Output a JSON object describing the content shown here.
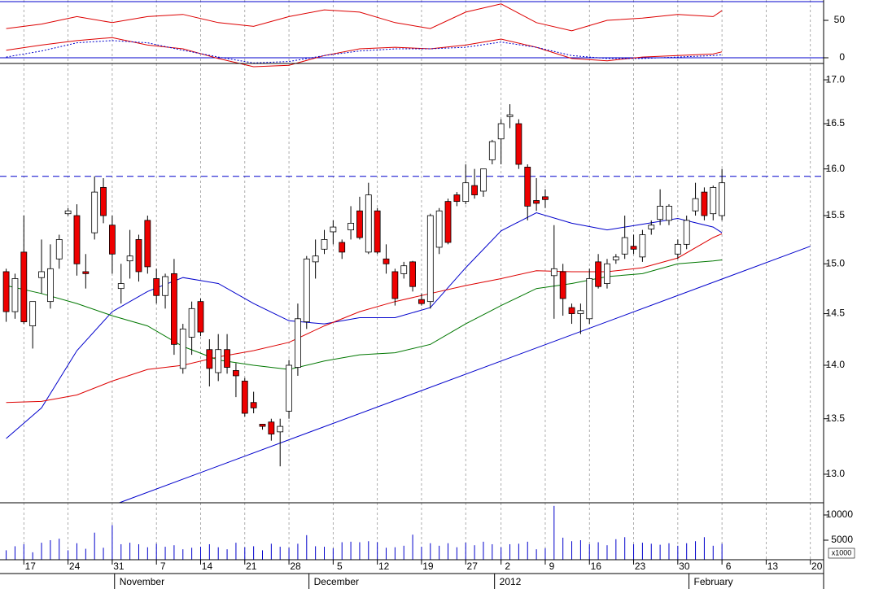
{
  "chart_data": [
    {
      "type": "candlestick",
      "log": true,
      "xlim": [
        -0.7,
        92.5
      ],
      "ylim": [
        12.75,
        17.19
      ],
      "yticks": [
        {
          "value": 17,
          "label": "17.0"
        },
        16.5,
        {
          "value": 16,
          "label": "16.0"
        },
        15.5,
        {
          "value": 15,
          "label": "15.0"
        },
        14.5,
        {
          "value": 14,
          "label": "14.0"
        },
        13.5,
        {
          "value": 13,
          "label": "13.0"
        }
      ],
      "xticks": [
        {
          "value": 2,
          "label": "17"
        },
        {
          "value": 7,
          "label": "24"
        },
        {
          "value": 12,
          "label": "31"
        },
        {
          "value": 17,
          "label": "7"
        },
        {
          "value": 22,
          "label": "14"
        },
        {
          "value": 27,
          "label": "21"
        },
        {
          "value": 32,
          "label": "28"
        },
        {
          "value": 37,
          "label": "5"
        },
        {
          "value": 42,
          "label": "12"
        },
        {
          "value": 47,
          "label": "19"
        },
        {
          "value": 52,
          "label": "27"
        },
        {
          "value": 56,
          "label": "2"
        },
        {
          "value": 61,
          "label": "9"
        },
        {
          "value": 66,
          "label": "16"
        },
        {
          "value": 71,
          "label": "23"
        },
        {
          "value": 76,
          "label": "30"
        },
        {
          "value": 81,
          "label": "6"
        },
        {
          "value": 86,
          "label": "13"
        },
        {
          "value": 91,
          "label": "20"
        }
      ],
      "months": [
        {
          "value": 13,
          "label": "November"
        },
        {
          "value": 35,
          "label": "December"
        },
        {
          "value": 56,
          "label": "2012"
        },
        {
          "value": 78,
          "label": "February"
        }
      ],
      "up_color": "#ffffff",
      "down_color": "#ee0000",
      "open": [
        14.92,
        14.52,
        15.12,
        14.38,
        14.86,
        14.62,
        15.05,
        15.52,
        15.5,
        14.92,
        15.32,
        15.8,
        15.4,
        14.75,
        15.03,
        15.25,
        15.45,
        14.85,
        14.68,
        14.9,
        13.97,
        14.27,
        14.62,
        14.15,
        13.93,
        14.15,
        13.95,
        13.85,
        13.65,
        13.45,
        13.47,
        13.38,
        13.57,
        13.98,
        14.42,
        15.02,
        15.15,
        15.33,
        15.22,
        15.35,
        15.55,
        15.12,
        15.55,
        15.05,
        14.92,
        14.9,
        15.02,
        14.64,
        14.62,
        15.17,
        15.65,
        15.72,
        15.65,
        15.82,
        15.76,
        16.1,
        16.33,
        16.58,
        16.5,
        16.02,
        15.66,
        15.7,
        14.88,
        14.92,
        14.56,
        14.5,
        14.45,
        15.02,
        14.8,
        15.04,
        15.1,
        15.18,
        15.07,
        15.36,
        15.46,
        15.45,
        15.1,
        15.2,
        15.55,
        15.75,
        15.52,
        15.5
      ],
      "high": [
        14.95,
        14.9,
        15.5,
        14.62,
        15.25,
        15.2,
        15.3,
        15.58,
        15.62,
        15.1,
        15.92,
        15.9,
        15.5,
        15.0,
        15.35,
        15.3,
        15.5,
        14.95,
        14.9,
        15.05,
        14.4,
        14.62,
        14.65,
        14.25,
        14.3,
        14.3,
        14.02,
        13.88,
        13.75,
        13.45,
        13.5,
        13.5,
        14.05,
        14.6,
        15.08,
        15.25,
        15.35,
        15.45,
        15.25,
        15.6,
        15.7,
        15.85,
        15.58,
        15.2,
        14.95,
        15.02,
        15.03,
        14.7,
        15.52,
        15.58,
        15.68,
        15.75,
        16.05,
        16.0,
        16.0,
        16.32,
        16.55,
        16.72,
        16.55,
        16.05,
        15.9,
        15.78,
        15.4,
        15.0,
        14.6,
        14.6,
        14.95,
        15.1,
        15.05,
        15.1,
        15.5,
        15.3,
        15.35,
        15.45,
        15.78,
        15.62,
        15.25,
        15.5,
        15.85,
        15.8,
        15.82,
        16.0
      ],
      "low": [
        14.42,
        14.45,
        14.4,
        14.16,
        14.7,
        14.55,
        14.95,
        15.5,
        14.88,
        14.75,
        15.25,
        15.42,
        14.9,
        14.6,
        14.85,
        14.82,
        14.9,
        14.6,
        14.55,
        14.1,
        13.92,
        14.1,
        14.28,
        13.8,
        13.85,
        13.92,
        13.7,
        13.52,
        13.55,
        13.4,
        13.3,
        13.07,
        13.5,
        13.9,
        14.35,
        14.85,
        15.1,
        15.2,
        15.05,
        15.25,
        15.25,
        15.1,
        15.1,
        14.9,
        14.58,
        14.85,
        14.72,
        14.58,
        14.55,
        15.1,
        15.2,
        15.6,
        15.62,
        15.68,
        15.7,
        16.05,
        16.05,
        16.45,
        16.0,
        15.45,
        15.55,
        15.58,
        14.45,
        14.48,
        14.4,
        14.3,
        14.4,
        14.75,
        14.75,
        15.0,
        15.05,
        15.1,
        15.02,
        15.3,
        15.4,
        15.4,
        15.05,
        15.15,
        15.5,
        15.45,
        15.45,
        15.45
      ],
      "close": [
        14.52,
        14.85,
        14.42,
        14.62,
        14.92,
        14.95,
        15.25,
        15.55,
        15.0,
        14.9,
        15.75,
        15.5,
        15.1,
        14.8,
        15.08,
        14.92,
        14.97,
        14.68,
        14.87,
        14.2,
        14.35,
        14.55,
        14.32,
        13.97,
        14.15,
        13.98,
        13.9,
        13.55,
        13.6,
        13.43,
        13.36,
        13.43,
        14.0,
        14.45,
        15.05,
        15.08,
        15.25,
        15.38,
        15.12,
        15.42,
        15.27,
        15.72,
        15.12,
        15.0,
        14.65,
        14.98,
        14.77,
        14.6,
        15.5,
        15.55,
        15.22,
        15.65,
        15.85,
        15.72,
        16.0,
        16.3,
        16.5,
        16.6,
        16.05,
        15.6,
        15.63,
        15.67,
        14.95,
        14.65,
        14.5,
        14.53,
        14.85,
        14.77,
        15.0,
        15.07,
        15.27,
        15.15,
        15.3,
        15.4,
        15.6,
        15.6,
        15.2,
        15.45,
        15.68,
        15.5,
        15.8,
        15.85
      ],
      "ma_x": [
        0,
        4,
        8,
        12,
        16,
        20,
        24,
        28,
        32,
        36,
        40,
        44,
        48,
        52,
        56,
        60,
        64,
        68,
        72,
        76,
        80,
        81
      ],
      "series": [
        {
          "color": "#0000cc",
          "values": [
            13.32,
            13.6,
            14.14,
            14.52,
            14.72,
            14.86,
            14.8,
            14.6,
            14.43,
            14.4,
            14.46,
            14.46,
            14.56,
            14.96,
            15.34,
            15.53,
            15.42,
            15.35,
            15.41,
            15.47,
            15.38,
            15.32
          ]
        },
        {
          "color": "#dd0000",
          "values": [
            13.65,
            13.66,
            13.72,
            13.85,
            13.96,
            14.0,
            14.08,
            14.14,
            14.22,
            14.38,
            14.52,
            14.62,
            14.7,
            14.78,
            14.85,
            14.93,
            14.92,
            14.92,
            14.96,
            15.06,
            15.27,
            15.31
          ]
        },
        {
          "color": "#007700",
          "values": [
            14.78,
            14.7,
            14.6,
            14.48,
            14.38,
            14.18,
            14.05,
            14.0,
            13.96,
            14.04,
            14.1,
            14.12,
            14.2,
            14.4,
            14.58,
            14.75,
            14.8,
            14.87,
            14.9,
            15.0,
            15.03,
            15.04
          ]
        }
      ],
      "trendline": {
        "color": "#0000cc",
        "x": [
          12.8,
          91
        ],
        "values": [
          12.75,
          15.18
        ]
      },
      "hline": {
        "color": "#0000cc",
        "value": 15.92
      }
    },
    {
      "type": "line",
      "ylim": [
        -7.6,
        77.2
      ],
      "yticks": [
        50,
        0
      ],
      "levels": [
        75,
        0
      ],
      "level_color": "#0000cc",
      "x": [
        0,
        4,
        8,
        12,
        16,
        20,
        24,
        28,
        32,
        36,
        40,
        44,
        48,
        52,
        56,
        60,
        64,
        68,
        72,
        76,
        80,
        81
      ],
      "series": [
        {
          "color": "#dd0000",
          "values": [
            39,
            45,
            55,
            47,
            55,
            58,
            47,
            42,
            55,
            64,
            61,
            47,
            39,
            61,
            72,
            47,
            36,
            50,
            53,
            58,
            55,
            63
          ]
        },
        {
          "color": "#dd0000",
          "values": [
            10,
            17,
            23,
            27,
            17,
            12,
            -1,
            -12,
            -10,
            3,
            12,
            14,
            12,
            17,
            25,
            14,
            -1,
            -4,
            1,
            3,
            5,
            8
          ]
        },
        {
          "color": "#0000cc",
          "style": "dotted",
          "values": [
            1,
            9,
            20,
            23,
            20,
            10,
            1,
            -7,
            -5,
            3,
            9,
            12,
            12,
            14,
            21,
            14,
            3,
            -1,
            -1,
            1,
            3,
            4
          ]
        }
      ]
    },
    {
      "type": "bar",
      "color": "#0000cc",
      "ylim": [
        1130,
        12420
      ],
      "yticks": [
        10000,
        5000
      ],
      "unit_label": "x1000",
      "values": [
        3000,
        3800,
        4200,
        2600,
        4500,
        5000,
        5300,
        3000,
        4400,
        3300,
        6500,
        3500,
        8000,
        4200,
        4500,
        4200,
        3600,
        4300,
        3700,
        4000,
        3200,
        3500,
        3700,
        4200,
        3600,
        3200,
        4500,
        3600,
        3800,
        3000,
        4300,
        3700,
        3500,
        4300,
        6000,
        3800,
        3700,
        3400,
        4600,
        4700,
        4600,
        4800,
        4600,
        3500,
        3600,
        3900,
        6100,
        3700,
        4400,
        3900,
        4400,
        3600,
        4500,
        4000,
        4700,
        4200,
        3600,
        4200,
        4300,
        4700,
        3200,
        3400,
        11800,
        5500,
        4800,
        5000,
        4200,
        4600,
        4000,
        5200,
        5600,
        4200,
        4500,
        4300,
        4100,
        4400,
        3900,
        4400,
        4800,
        5600,
        3900,
        4300
      ]
    }
  ]
}
